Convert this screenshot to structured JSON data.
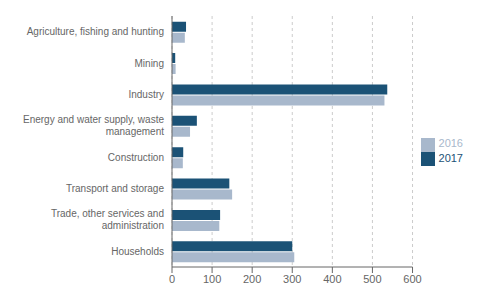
{
  "chart_data": {
    "type": "bar",
    "orientation": "horizontal",
    "categories": [
      "Agriculture, fishing and hunting",
      "Mining",
      "Industry",
      "Energy and water supply, waste\nmanagement",
      "Construction",
      "Transport and storage",
      "Trade, other services and\nadministration",
      "Households"
    ],
    "series": [
      {
        "name": "2017",
        "color": "#1b5276",
        "values": [
          35,
          8,
          537,
          62,
          28,
          143,
          120,
          300
        ]
      },
      {
        "name": "2016",
        "color": "#a8b8cc",
        "values": [
          32,
          9,
          530,
          45,
          27,
          150,
          118,
          305
        ]
      }
    ],
    "xlim": [
      0,
      600
    ],
    "xticks": [
      0,
      100,
      200,
      300,
      400,
      500,
      600
    ],
    "grid": true,
    "legend": "right"
  }
}
